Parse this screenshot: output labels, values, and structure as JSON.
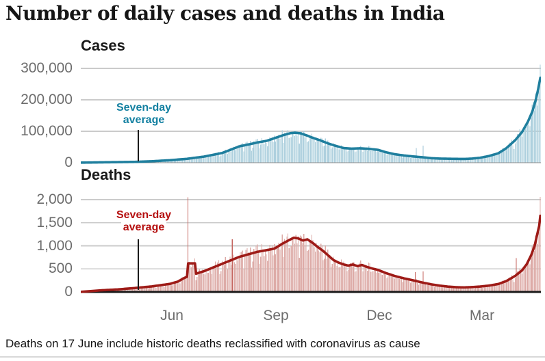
{
  "page": {
    "title": "Number of daily cases and deaths in India",
    "footnote": "Deaths on 17 June include historic deaths reclassified with coronavirus as cause"
  },
  "styles": {
    "grid": "#cbcbcb",
    "axis_text": "#6d6d6d",
    "title_text": "#161616",
    "divider": "#d8d8d8"
  },
  "x_axis": {
    "total_days": 405,
    "ticks": [
      {
        "label": "Jun",
        "day": 80
      },
      {
        "label": "Sep",
        "day": 172
      },
      {
        "label": "Dec",
        "day": 263
      },
      {
        "label": "Mar",
        "day": 353
      }
    ]
  },
  "chart_data": [
    {
      "id": "cases",
      "type": "bar",
      "title": "Cases",
      "ylim": [
        0,
        300000
      ],
      "y_ticks": [
        {
          "label": "300,000",
          "value": 300000
        },
        {
          "label": "200,000",
          "value": 200000
        },
        {
          "label": "100,000",
          "value": 100000
        },
        {
          "label": "0",
          "value": 0
        }
      ],
      "annotation": {
        "line1": "Seven-day",
        "line2": "average"
      },
      "colors": {
        "bar": "#aed0de",
        "line": "#1f7f9e",
        "annotation": "#1380a1",
        "spike": "#9dc3d4",
        "baseline": "#8a8a8a"
      },
      "series": {
        "average": {
          "name": "seven-day average",
          "points": [
            [
              0,
              300
            ],
            [
              17,
              1200
            ],
            [
              32,
              1900
            ],
            [
              47,
              2700
            ],
            [
              62,
              4700
            ],
            [
              78,
              8000
            ],
            [
              93,
              12500
            ],
            [
              108,
              19500
            ],
            [
              124,
              31000
            ],
            [
              139,
              52000
            ],
            [
              147,
              58000
            ],
            [
              155,
              64500
            ],
            [
              163,
              69500
            ],
            [
              170,
              78000
            ],
            [
              178,
              88000
            ],
            [
              184,
              94000
            ],
            [
              188,
              95500
            ],
            [
              193,
              93500
            ],
            [
              199,
              86000
            ],
            [
              203,
              80000
            ],
            [
              210,
              71500
            ],
            [
              217,
              61500
            ],
            [
              224,
              53500
            ],
            [
              231,
              46500
            ],
            [
              238,
              44800
            ],
            [
              245,
              45800
            ],
            [
              252,
              44500
            ],
            [
              261,
              41000
            ],
            [
              268,
              33500
            ],
            [
              276,
              27000
            ],
            [
              284,
              23000
            ],
            [
              292,
              20000
            ],
            [
              300,
              17500
            ],
            [
              308,
              14500
            ],
            [
              315,
              13200
            ],
            [
              323,
              12700
            ],
            [
              330,
              12300
            ],
            [
              337,
              12000
            ],
            [
              344,
              13200
            ],
            [
              351,
              15800
            ],
            [
              359,
              21500
            ],
            [
              367,
              30000
            ],
            [
              374,
              46000
            ],
            [
              382,
              72000
            ],
            [
              388,
              98000
            ],
            [
              393,
              130000
            ],
            [
              397,
              163000
            ],
            [
              400,
              200000
            ],
            [
              402,
              232000
            ],
            [
              404,
              270000
            ]
          ]
        },
        "bars": {
          "name": "daily reported cases",
          "derivation": "seven-day average multiplied by daily noise",
          "noise": {
            "base": 0.84,
            "range": 0.36,
            "weekly_dips": {
              "3": 0.74,
              "4": 0.9
            }
          },
          "overrides": {
            "295": 47000,
            "301": 54000,
            "404": 312000
          },
          "spike_days": [
            295,
            301
          ]
        }
      }
    },
    {
      "id": "deaths",
      "type": "bar",
      "title": "Deaths",
      "ylim": [
        0,
        2000
      ],
      "y_ticks": [
        {
          "label": "2,000",
          "value": 2000
        },
        {
          "label": "1,500",
          "value": 1500
        },
        {
          "label": "1,000",
          "value": 1000
        },
        {
          "label": "500",
          "value": 500
        },
        {
          "label": "0",
          "value": 0
        }
      ],
      "annotation": {
        "line1": "Seven-day",
        "line2": "average"
      },
      "colors": {
        "bar": "#ddaba7",
        "line": "#9e1b17",
        "annotation": "#b50f0f",
        "spike": "#c4655f",
        "baseline": "#1a1a1a"
      },
      "series": {
        "average": {
          "name": "seven-day average",
          "points": [
            [
              0,
              3
            ],
            [
              17,
              35
            ],
            [
              32,
              55
            ],
            [
              47,
              85
            ],
            [
              62,
              120
            ],
            [
              78,
              175
            ],
            [
              85,
              225
            ],
            [
              90,
              295
            ],
            [
              93,
              330
            ],
            [
              94,
              620
            ],
            [
              100,
              620
            ],
            [
              101,
              395
            ],
            [
              104,
              420
            ],
            [
              108,
              450
            ],
            [
              116,
              530
            ],
            [
              124,
              610
            ],
            [
              131,
              680
            ],
            [
              139,
              760
            ],
            [
              147,
              815
            ],
            [
              155,
              870
            ],
            [
              163,
              905
            ],
            [
              170,
              940
            ],
            [
              178,
              1060
            ],
            [
              183,
              1125
            ],
            [
              187,
              1175
            ],
            [
              191,
              1160
            ],
            [
              195,
              1115
            ],
            [
              199,
              1140
            ],
            [
              204,
              1055
            ],
            [
              208,
              975
            ],
            [
              213,
              885
            ],
            [
              218,
              775
            ],
            [
              222,
              690
            ],
            [
              226,
              640
            ],
            [
              231,
              595
            ],
            [
              235,
              570
            ],
            [
              239,
              595
            ],
            [
              243,
              560
            ],
            [
              247,
              585
            ],
            [
              251,
              545
            ],
            [
              256,
              508
            ],
            [
              261,
              478
            ],
            [
              268,
              410
            ],
            [
              276,
              345
            ],
            [
              284,
              295
            ],
            [
              292,
              252
            ],
            [
              300,
              205
            ],
            [
              308,
              165
            ],
            [
              315,
              138
            ],
            [
              323,
              115
            ],
            [
              330,
              103
            ],
            [
              337,
              98
            ],
            [
              344,
              106
            ],
            [
              351,
              117
            ],
            [
              359,
              138
            ],
            [
              367,
              172
            ],
            [
              374,
              235
            ],
            [
              382,
              350
            ],
            [
              388,
              470
            ],
            [
              392,
              600
            ],
            [
              396,
              800
            ],
            [
              399,
              1000
            ],
            [
              401,
              1220
            ],
            [
              403,
              1430
            ],
            [
              404,
              1650
            ]
          ]
        },
        "bars": {
          "name": "daily reported deaths",
          "derivation": "seven-day average multiplied by daily noise",
          "noise": {
            "base": 0.84,
            "range": 0.36,
            "weekly_dips": {
              "3": 0.74,
              "4": 0.9
            }
          },
          "overrides": {
            "94": 2050,
            "133": 1140,
            "294": 430,
            "301": 445,
            "383": 730,
            "404": 2060
          },
          "spike_days": [
            94,
            133,
            294,
            301,
            383
          ]
        }
      }
    }
  ]
}
